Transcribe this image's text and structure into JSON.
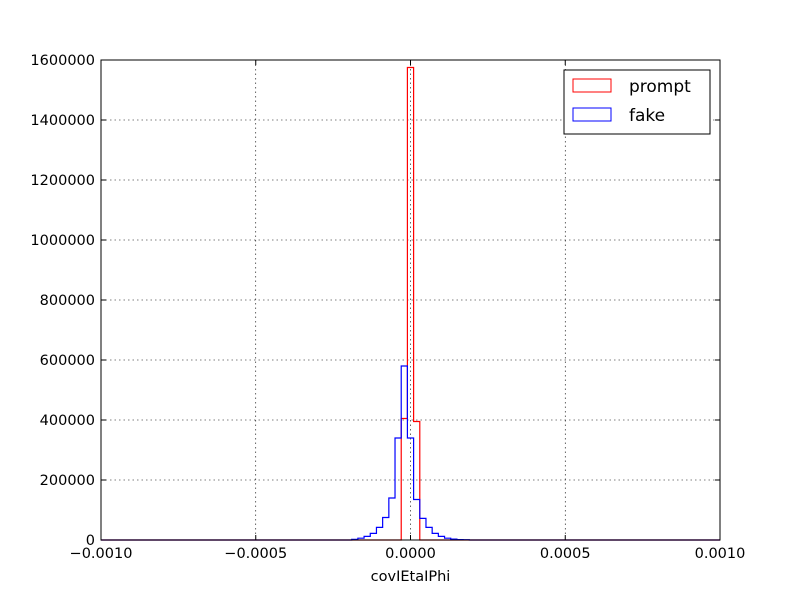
{
  "chart_data": {
    "type": "histogram-step",
    "title": "",
    "xlabel": "covIEtaIPhi",
    "ylabel": "",
    "xlim": [
      -0.001,
      0.001
    ],
    "ylim": [
      0,
      1600000
    ],
    "grid": true,
    "legend_position": "top-right",
    "x_ticks": [
      "−0.0010",
      "−0.0005",
      "0.0000",
      "0.0005",
      "0.0010"
    ],
    "x_tick_values": [
      -0.001,
      -0.0005,
      0,
      0.0005,
      0.001
    ],
    "y_ticks": [
      "0",
      "200000",
      "400000",
      "600000",
      "800000",
      "1000000",
      "1200000",
      "1400000",
      "1600000"
    ],
    "y_tick_values": [
      0,
      200000,
      400000,
      600000,
      800000,
      1000000,
      1200000,
      1400000,
      1600000
    ],
    "bin_edges": [
      -0.001,
      -0.00019,
      -0.00017,
      -0.00015,
      -0.00013,
      -0.00011,
      -9e-05,
      -7e-05,
      -5e-05,
      -3e-05,
      -1e-05,
      1e-05,
      3e-05,
      5e-05,
      7e-05,
      9e-05,
      0.00011,
      0.00013,
      0.00015,
      0.00017,
      0.00019,
      0.001
    ],
    "series": [
      {
        "name": "prompt",
        "color": "#ff0000",
        "values": [
          0,
          0,
          0,
          0,
          0,
          0,
          0,
          0,
          0,
          405000,
          1575000,
          395000,
          0,
          0,
          0,
          0,
          0,
          0,
          0,
          0,
          0
        ]
      },
      {
        "name": "fake",
        "color": "#0000ff",
        "values": [
          0,
          2000,
          6000,
          12000,
          22000,
          42000,
          75000,
          140000,
          340000,
          580000,
          340000,
          135000,
          72000,
          42000,
          22000,
          12000,
          6000,
          3000,
          1500,
          800,
          0
        ]
      }
    ]
  }
}
